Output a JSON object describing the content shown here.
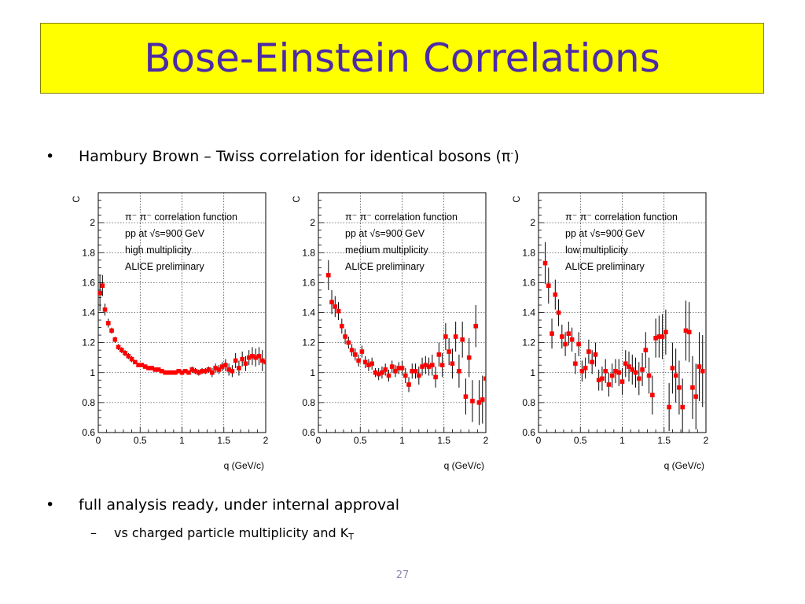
{
  "slide": {
    "title": "Bose-Einstein Correlations",
    "bullet1_text": "Hambury Brown – Twiss correlation for identical bosons (π",
    "bullet1_sup": "-",
    "bullet1_close": ")",
    "bullet2_text": "full analysis ready, under internal approval",
    "sub1_text": "vs charged particle multiplicity and K",
    "sub1_sub": "T",
    "page_number": "27",
    "bullet_char": "•",
    "dash_char": "–"
  },
  "colors": {
    "title_bg": "#ffff00",
    "title_text": "#4b2aa8",
    "marker": "#ff0000"
  },
  "chart_data": [
    {
      "type": "scatter",
      "xlabel": "q (GeV/c)",
      "ylabel": "C",
      "xlim": [
        0,
        2
      ],
      "ylim": [
        0.6,
        2.2
      ],
      "xticks": [
        "0",
        "0.5",
        "1",
        "1.5",
        "2"
      ],
      "yticks": [
        "0.6",
        "0.8",
        "1",
        "1.2",
        "1.4",
        "1.6",
        "1.8",
        "2"
      ],
      "grid": true,
      "legend_lines": [
        "π⁻ π⁻ correlation function",
        "pp at √s=900 GeV",
        "high multiplicity",
        "ALICE preliminary"
      ],
      "series": [
        {
          "x": [
            0.02,
            0.05,
            0.08,
            0.12,
            0.16,
            0.2,
            0.24,
            0.28,
            0.32,
            0.36,
            0.4,
            0.44,
            0.48,
            0.52,
            0.56,
            0.6,
            0.64,
            0.68,
            0.72,
            0.76,
            0.8,
            0.84,
            0.88,
            0.92,
            0.96,
            1.0,
            1.04,
            1.08,
            1.12,
            1.16,
            1.2,
            1.24,
            1.28,
            1.32,
            1.36,
            1.4,
            1.44,
            1.48,
            1.52,
            1.56,
            1.6,
            1.64,
            1.68,
            1.72,
            1.76,
            1.8,
            1.84,
            1.88,
            1.92,
            1.96,
            2.0
          ],
          "y": [
            1.53,
            1.58,
            1.42,
            1.33,
            1.28,
            1.22,
            1.17,
            1.15,
            1.13,
            1.11,
            1.09,
            1.07,
            1.05,
            1.05,
            1.04,
            1.03,
            1.03,
            1.02,
            1.02,
            1.01,
            1.0,
            1.0,
            1.0,
            1.0,
            1.01,
            1.0,
            1.01,
            1.0,
            1.02,
            1.01,
            1.0,
            1.01,
            1.01,
            1.02,
            1.0,
            1.03,
            1.02,
            1.04,
            1.05,
            1.02,
            1.01,
            1.08,
            1.03,
            1.09,
            1.06,
            1.1,
            1.11,
            1.1,
            1.11,
            1.08,
            1.07
          ],
          "err": [
            0.12,
            0.07,
            0.04,
            0.03,
            0.02,
            0.02,
            0.02,
            0.02,
            0.02,
            0.02,
            0.02,
            0.01,
            0.01,
            0.01,
            0.01,
            0.01,
            0.01,
            0.01,
            0.01,
            0.01,
            0.01,
            0.01,
            0.01,
            0.01,
            0.01,
            0.01,
            0.01,
            0.01,
            0.02,
            0.02,
            0.02,
            0.02,
            0.02,
            0.02,
            0.03,
            0.03,
            0.03,
            0.03,
            0.04,
            0.04,
            0.04,
            0.05,
            0.05,
            0.05,
            0.05,
            0.05,
            0.06,
            0.06,
            0.06,
            0.07,
            0.07
          ]
        }
      ]
    },
    {
      "type": "scatter",
      "xlabel": "q (GeV/c)",
      "ylabel": "C",
      "xlim": [
        0,
        2
      ],
      "ylim": [
        0.6,
        2.2
      ],
      "xticks": [
        "0",
        "0.5",
        "1",
        "1.5",
        "2"
      ],
      "yticks": [
        "0.6",
        "0.8",
        "1",
        "1.2",
        "1.4",
        "1.6",
        "1.8",
        "2"
      ],
      "grid": true,
      "legend_lines": [
        "π⁻ π⁻ correlation function",
        "pp at √s=900 GeV",
        "medium multiplicity",
        "ALICE preliminary"
      ],
      "series": [
        {
          "x": [
            0.12,
            0.16,
            0.2,
            0.24,
            0.28,
            0.32,
            0.36,
            0.4,
            0.44,
            0.48,
            0.52,
            0.56,
            0.6,
            0.64,
            0.68,
            0.72,
            0.76,
            0.8,
            0.84,
            0.88,
            0.92,
            0.96,
            1.0,
            1.04,
            1.08,
            1.12,
            1.16,
            1.2,
            1.24,
            1.28,
            1.32,
            1.36,
            1.4,
            1.44,
            1.48,
            1.52,
            1.56,
            1.6,
            1.64,
            1.68,
            1.72,
            1.76,
            1.8,
            1.84,
            1.88,
            1.92,
            1.96,
            2.0
          ],
          "y": [
            1.65,
            1.47,
            1.44,
            1.41,
            1.31,
            1.24,
            1.2,
            1.15,
            1.12,
            1.08,
            1.14,
            1.07,
            1.05,
            1.06,
            1.0,
            0.99,
            1.0,
            1.02,
            0.98,
            1.04,
            1.01,
            1.03,
            1.03,
            0.98,
            0.92,
            1.01,
            1.01,
            0.98,
            1.04,
            1.05,
            1.04,
            1.05,
            0.97,
            1.12,
            1.05,
            1.24,
            1.14,
            1.06,
            1.24,
            1.01,
            1.22,
            0.84,
            1.1,
            0.81,
            1.31,
            0.8,
            0.82,
            0.96
          ],
          "err": [
            0.1,
            0.08,
            0.07,
            0.06,
            0.05,
            0.05,
            0.04,
            0.04,
            0.04,
            0.04,
            0.04,
            0.04,
            0.04,
            0.04,
            0.03,
            0.04,
            0.04,
            0.04,
            0.04,
            0.04,
            0.04,
            0.04,
            0.05,
            0.05,
            0.05,
            0.05,
            0.05,
            0.06,
            0.06,
            0.06,
            0.06,
            0.07,
            0.07,
            0.08,
            0.08,
            0.09,
            0.09,
            0.1,
            0.1,
            0.11,
            0.12,
            0.12,
            0.13,
            0.14,
            0.14,
            0.15,
            0.16,
            0.16
          ]
        }
      ]
    },
    {
      "type": "scatter",
      "xlabel": "q (GeV/c)",
      "ylabel": "C",
      "xlim": [
        0,
        2
      ],
      "ylim": [
        0.6,
        2.2
      ],
      "xticks": [
        "0",
        "0.5",
        "1",
        "1.5",
        "2"
      ],
      "yticks": [
        "0.6",
        "0.8",
        "1",
        "1.2",
        "1.4",
        "1.6",
        "1.8",
        "2"
      ],
      "grid": true,
      "legend_lines": [
        "π⁻ π⁻ correlation function",
        "pp at √s=900 GeV",
        "low multiplicity",
        "ALICE preliminary"
      ],
      "series": [
        {
          "x": [
            0.08,
            0.12,
            0.16,
            0.2,
            0.24,
            0.28,
            0.32,
            0.36,
            0.4,
            0.44,
            0.48,
            0.52,
            0.56,
            0.6,
            0.64,
            0.68,
            0.72,
            0.76,
            0.8,
            0.84,
            0.88,
            0.92,
            0.96,
            1.0,
            1.04,
            1.08,
            1.12,
            1.16,
            1.2,
            1.24,
            1.28,
            1.32,
            1.36,
            1.4,
            1.44,
            1.48,
            1.52,
            1.56,
            1.6,
            1.64,
            1.68,
            1.72,
            1.76,
            1.8,
            1.84,
            1.88,
            1.92,
            1.96
          ],
          "y": [
            1.73,
            1.58,
            1.26,
            1.52,
            1.4,
            1.24,
            1.19,
            1.26,
            1.22,
            1.06,
            1.19,
            1.01,
            1.03,
            1.14,
            1.07,
            1.12,
            0.95,
            0.96,
            1.01,
            0.92,
            0.98,
            1.01,
            1.0,
            0.94,
            1.06,
            1.04,
            1.02,
            1.0,
            0.96,
            1.02,
            1.15,
            0.98,
            0.85,
            1.23,
            1.24,
            1.24,
            1.27,
            0.77,
            1.03,
            0.98,
            0.9,
            0.77,
            1.28,
            1.27,
            0.9,
            0.84,
            1.04,
            1.01
          ],
          "err": [
            0.14,
            0.12,
            0.1,
            0.1,
            0.09,
            0.08,
            0.08,
            0.08,
            0.08,
            0.07,
            0.08,
            0.07,
            0.07,
            0.08,
            0.08,
            0.08,
            0.07,
            0.08,
            0.08,
            0.08,
            0.08,
            0.08,
            0.09,
            0.09,
            0.09,
            0.1,
            0.1,
            0.1,
            0.11,
            0.11,
            0.12,
            0.12,
            0.13,
            0.13,
            0.14,
            0.15,
            0.15,
            0.16,
            0.17,
            0.18,
            0.18,
            0.19,
            0.2,
            0.2,
            0.21,
            0.22,
            0.23,
            0.24
          ]
        }
      ]
    }
  ]
}
